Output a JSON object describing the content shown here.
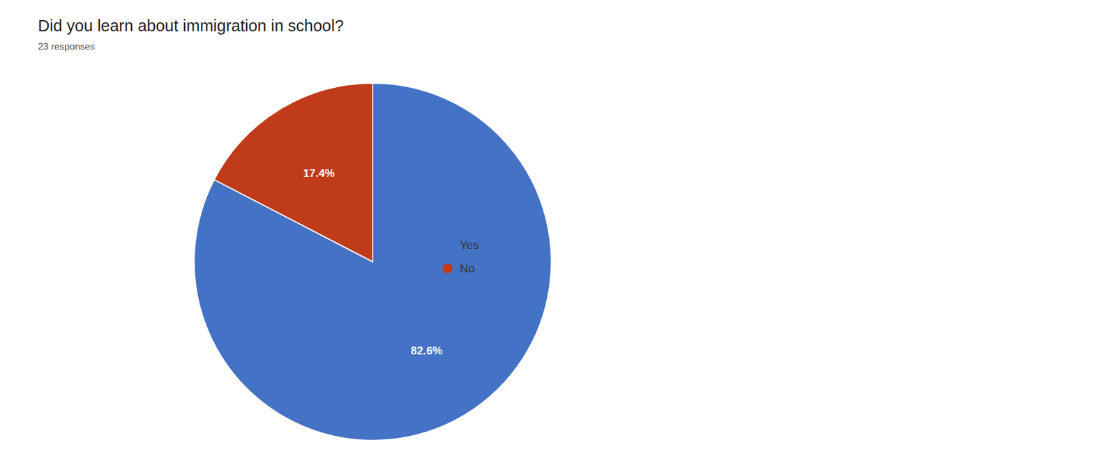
{
  "chart_data": {
    "type": "pie",
    "title": "Did you learn about immigration in school?",
    "subtitle": "23 responses",
    "categories": [
      "Yes",
      "No"
    ],
    "values": [
      82.6,
      17.4
    ],
    "colors": [
      "#4472C4",
      "#C03B1A"
    ],
    "value_labels": [
      "82.6%",
      "17.4%"
    ],
    "data_labels": true,
    "legend": "right"
  }
}
